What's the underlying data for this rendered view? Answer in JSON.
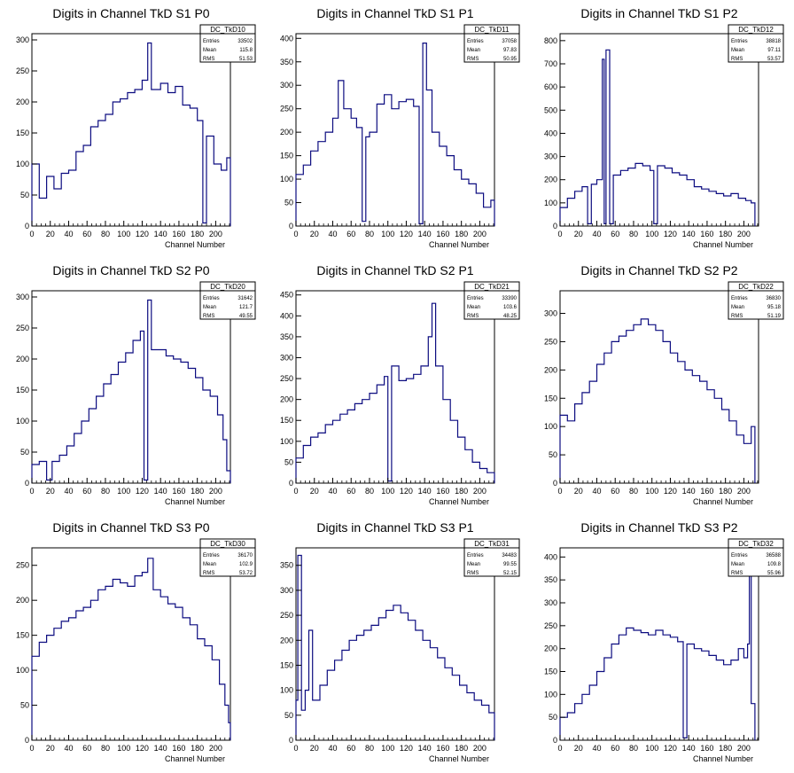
{
  "chart_data": [
    {
      "type": "histogram",
      "title": "Digits in Channel TkD S1 P0",
      "xlabel": "Channel Number",
      "ylabel": "",
      "xlim": [
        0,
        216
      ],
      "ylim": [
        0,
        310
      ],
      "xticks": [
        0,
        20,
        40,
        60,
        80,
        100,
        120,
        140,
        160,
        180,
        200
      ],
      "yticks": [
        0,
        50,
        100,
        150,
        200,
        250,
        300
      ],
      "stats": {
        "name": "DC_TkD10",
        "entries": "33502",
        "mean": "115.8",
        "rms": "51.53"
      },
      "bins": [
        [
          0,
          100
        ],
        [
          8,
          45
        ],
        [
          16,
          80
        ],
        [
          24,
          60
        ],
        [
          32,
          85
        ],
        [
          40,
          90
        ],
        [
          48,
          120
        ],
        [
          56,
          130
        ],
        [
          64,
          160
        ],
        [
          72,
          170
        ],
        [
          80,
          180
        ],
        [
          88,
          200
        ],
        [
          96,
          205
        ],
        [
          104,
          215
        ],
        [
          112,
          220
        ],
        [
          120,
          235
        ],
        [
          126,
          295
        ],
        [
          130,
          220
        ],
        [
          140,
          230
        ],
        [
          148,
          215
        ],
        [
          156,
          225
        ],
        [
          164,
          195
        ],
        [
          172,
          190
        ],
        [
          180,
          170
        ],
        [
          186,
          5
        ],
        [
          190,
          145
        ],
        [
          198,
          100
        ],
        [
          206,
          90
        ],
        [
          212,
          110
        ],
        [
          216,
          0
        ]
      ]
    },
    {
      "type": "histogram",
      "title": "Digits in Channel TkD S1 P1",
      "xlabel": "Channel Number",
      "ylabel": "",
      "xlim": [
        0,
        216
      ],
      "ylim": [
        0,
        410
      ],
      "xticks": [
        0,
        20,
        40,
        60,
        80,
        100,
        120,
        140,
        160,
        180,
        200
      ],
      "yticks": [
        0,
        50,
        100,
        150,
        200,
        250,
        300,
        350,
        400
      ],
      "stats": {
        "name": "DC_TkD11",
        "entries": "37058",
        "mean": "97.83",
        "rms": "50.95"
      },
      "bins": [
        [
          0,
          110
        ],
        [
          8,
          130
        ],
        [
          16,
          160
        ],
        [
          24,
          180
        ],
        [
          32,
          200
        ],
        [
          40,
          230
        ],
        [
          46,
          310
        ],
        [
          52,
          250
        ],
        [
          60,
          230
        ],
        [
          66,
          210
        ],
        [
          72,
          10
        ],
        [
          76,
          190
        ],
        [
          80,
          200
        ],
        [
          88,
          260
        ],
        [
          96,
          280
        ],
        [
          104,
          250
        ],
        [
          112,
          265
        ],
        [
          120,
          270
        ],
        [
          128,
          255
        ],
        [
          134,
          5
        ],
        [
          138,
          390
        ],
        [
          142,
          290
        ],
        [
          148,
          200
        ],
        [
          156,
          170
        ],
        [
          164,
          150
        ],
        [
          172,
          120
        ],
        [
          180,
          100
        ],
        [
          188,
          90
        ],
        [
          196,
          70
        ],
        [
          204,
          40
        ],
        [
          212,
          55
        ],
        [
          216,
          0
        ]
      ]
    },
    {
      "type": "histogram",
      "title": "Digits in Channel TkD S1 P2",
      "xlabel": "Channel Number",
      "ylabel": "",
      "xlim": [
        0,
        216
      ],
      "ylim": [
        0,
        830
      ],
      "xticks": [
        0,
        20,
        40,
        60,
        80,
        100,
        120,
        140,
        160,
        180,
        200
      ],
      "yticks": [
        0,
        100,
        200,
        300,
        400,
        500,
        600,
        700,
        800
      ],
      "stats": {
        "name": "DC_TkD12",
        "entries": "38818",
        "mean": "97.11",
        "rms": "53.57"
      },
      "bins": [
        [
          0,
          80
        ],
        [
          8,
          120
        ],
        [
          16,
          150
        ],
        [
          24,
          170
        ],
        [
          30,
          10
        ],
        [
          34,
          180
        ],
        [
          40,
          200
        ],
        [
          46,
          720
        ],
        [
          48,
          10
        ],
        [
          50,
          760
        ],
        [
          54,
          10
        ],
        [
          58,
          220
        ],
        [
          66,
          240
        ],
        [
          74,
          250
        ],
        [
          82,
          270
        ],
        [
          90,
          260
        ],
        [
          98,
          240
        ],
        [
          102,
          10
        ],
        [
          106,
          260
        ],
        [
          114,
          250
        ],
        [
          122,
          230
        ],
        [
          130,
          220
        ],
        [
          138,
          200
        ],
        [
          146,
          170
        ],
        [
          154,
          160
        ],
        [
          162,
          150
        ],
        [
          170,
          140
        ],
        [
          178,
          130
        ],
        [
          186,
          140
        ],
        [
          194,
          120
        ],
        [
          202,
          110
        ],
        [
          208,
          100
        ],
        [
          212,
          0
        ]
      ]
    },
    {
      "type": "histogram",
      "title": "Digits in Channel TkD S2 P0",
      "xlabel": "Channel Number",
      "ylabel": "",
      "xlim": [
        0,
        216
      ],
      "ylim": [
        0,
        310
      ],
      "xticks": [
        0,
        20,
        40,
        60,
        80,
        100,
        120,
        140,
        160,
        180,
        200
      ],
      "yticks": [
        0,
        50,
        100,
        150,
        200,
        250,
        300
      ],
      "stats": {
        "name": "DC_TkD20",
        "entries": "31642",
        "mean": "121.7",
        "rms": "49.55"
      },
      "bins": [
        [
          0,
          30
        ],
        [
          8,
          35
        ],
        [
          16,
          5
        ],
        [
          22,
          35
        ],
        [
          30,
          45
        ],
        [
          38,
          60
        ],
        [
          46,
          80
        ],
        [
          54,
          100
        ],
        [
          62,
          120
        ],
        [
          70,
          140
        ],
        [
          78,
          160
        ],
        [
          86,
          175
        ],
        [
          94,
          195
        ],
        [
          102,
          210
        ],
        [
          110,
          230
        ],
        [
          118,
          245
        ],
        [
          122,
          5
        ],
        [
          126,
          295
        ],
        [
          130,
          215
        ],
        [
          138,
          215
        ],
        [
          146,
          205
        ],
        [
          154,
          200
        ],
        [
          162,
          195
        ],
        [
          170,
          185
        ],
        [
          178,
          170
        ],
        [
          186,
          150
        ],
        [
          194,
          140
        ],
        [
          202,
          110
        ],
        [
          208,
          70
        ],
        [
          212,
          20
        ],
        [
          216,
          0
        ]
      ]
    },
    {
      "type": "histogram",
      "title": "Digits in Channel TkD S2 P1",
      "xlabel": "Channel Number",
      "ylabel": "",
      "xlim": [
        0,
        216
      ],
      "ylim": [
        0,
        460
      ],
      "xticks": [
        0,
        20,
        40,
        60,
        80,
        100,
        120,
        140,
        160,
        180,
        200
      ],
      "yticks": [
        0,
        50,
        100,
        150,
        200,
        250,
        300,
        350,
        400,
        450
      ],
      "stats": {
        "name": "DC_TkD21",
        "entries": "33390",
        "mean": "103.6",
        "rms": "48.25"
      },
      "bins": [
        [
          0,
          60
        ],
        [
          8,
          90
        ],
        [
          16,
          110
        ],
        [
          24,
          120
        ],
        [
          32,
          140
        ],
        [
          40,
          150
        ],
        [
          48,
          165
        ],
        [
          56,
          175
        ],
        [
          64,
          190
        ],
        [
          72,
          200
        ],
        [
          80,
          215
        ],
        [
          88,
          235
        ],
        [
          96,
          255
        ],
        [
          100,
          5
        ],
        [
          104,
          280
        ],
        [
          112,
          245
        ],
        [
          120,
          250
        ],
        [
          128,
          260
        ],
        [
          136,
          280
        ],
        [
          144,
          350
        ],
        [
          148,
          430
        ],
        [
          152,
          280
        ],
        [
          160,
          200
        ],
        [
          168,
          150
        ],
        [
          176,
          110
        ],
        [
          184,
          80
        ],
        [
          192,
          50
        ],
        [
          200,
          35
        ],
        [
          208,
          25
        ],
        [
          216,
          0
        ]
      ]
    },
    {
      "type": "histogram",
      "title": "Digits in Channel TkD S2 P2",
      "xlabel": "Channel Number",
      "ylabel": "",
      "xlim": [
        0,
        216
      ],
      "ylim": [
        0,
        340
      ],
      "xticks": [
        0,
        20,
        40,
        60,
        80,
        100,
        120,
        140,
        160,
        180,
        200
      ],
      "yticks": [
        0,
        50,
        100,
        150,
        200,
        250,
        300
      ],
      "stats": {
        "name": "DC_TkD22",
        "entries": "36830",
        "mean": "95.18",
        "rms": "51.19"
      },
      "bins": [
        [
          0,
          120
        ],
        [
          8,
          110
        ],
        [
          16,
          140
        ],
        [
          24,
          160
        ],
        [
          32,
          180
        ],
        [
          40,
          210
        ],
        [
          48,
          230
        ],
        [
          56,
          250
        ],
        [
          64,
          260
        ],
        [
          72,
          270
        ],
        [
          80,
          280
        ],
        [
          88,
          290
        ],
        [
          96,
          280
        ],
        [
          104,
          270
        ],
        [
          112,
          250
        ],
        [
          120,
          230
        ],
        [
          128,
          215
        ],
        [
          136,
          200
        ],
        [
          144,
          190
        ],
        [
          152,
          180
        ],
        [
          160,
          165
        ],
        [
          168,
          150
        ],
        [
          176,
          130
        ],
        [
          184,
          110
        ],
        [
          192,
          85
        ],
        [
          200,
          70
        ],
        [
          208,
          100
        ],
        [
          212,
          0
        ]
      ]
    },
    {
      "type": "histogram",
      "title": "Digits in Channel TkD S3 P0",
      "xlabel": "Channel Number",
      "ylabel": "",
      "xlim": [
        0,
        216
      ],
      "ylim": [
        0,
        275
      ],
      "xticks": [
        0,
        20,
        40,
        60,
        80,
        100,
        120,
        140,
        160,
        180,
        200
      ],
      "yticks": [
        0,
        50,
        100,
        150,
        200,
        250
      ],
      "stats": {
        "name": "DC_TkD30",
        "entries": "36170",
        "mean": "102.9",
        "rms": "53.72"
      },
      "bins": [
        [
          0,
          120
        ],
        [
          8,
          140
        ],
        [
          16,
          150
        ],
        [
          24,
          160
        ],
        [
          32,
          170
        ],
        [
          40,
          175
        ],
        [
          48,
          185
        ],
        [
          56,
          190
        ],
        [
          64,
          200
        ],
        [
          72,
          215
        ],
        [
          80,
          220
        ],
        [
          88,
          230
        ],
        [
          96,
          225
        ],
        [
          104,
          220
        ],
        [
          112,
          235
        ],
        [
          120,
          240
        ],
        [
          126,
          260
        ],
        [
          132,
          215
        ],
        [
          140,
          205
        ],
        [
          148,
          195
        ],
        [
          156,
          190
        ],
        [
          164,
          175
        ],
        [
          172,
          165
        ],
        [
          180,
          145
        ],
        [
          188,
          135
        ],
        [
          196,
          115
        ],
        [
          204,
          80
        ],
        [
          210,
          50
        ],
        [
          214,
          25
        ],
        [
          216,
          0
        ]
      ]
    },
    {
      "type": "histogram",
      "title": "Digits in Channel TkD S3 P1",
      "xlabel": "Channel Number",
      "ylabel": "",
      "xlim": [
        0,
        216
      ],
      "ylim": [
        0,
        385
      ],
      "xticks": [
        0,
        20,
        40,
        60,
        80,
        100,
        120,
        140,
        160,
        180,
        200
      ],
      "yticks": [
        0,
        50,
        100,
        150,
        200,
        250,
        300,
        350
      ],
      "stats": {
        "name": "DC_TkD31",
        "entries": "34483",
        "mean": "99.55",
        "rms": "52.15"
      },
      "bins": [
        [
          0,
          80
        ],
        [
          2,
          370
        ],
        [
          6,
          60
        ],
        [
          10,
          100
        ],
        [
          14,
          220
        ],
        [
          18,
          80
        ],
        [
          26,
          110
        ],
        [
          34,
          140
        ],
        [
          42,
          160
        ],
        [
          50,
          180
        ],
        [
          58,
          200
        ],
        [
          66,
          210
        ],
        [
          74,
          220
        ],
        [
          82,
          230
        ],
        [
          90,
          245
        ],
        [
          98,
          260
        ],
        [
          106,
          270
        ],
        [
          114,
          255
        ],
        [
          122,
          240
        ],
        [
          130,
          220
        ],
        [
          138,
          200
        ],
        [
          146,
          185
        ],
        [
          154,
          165
        ],
        [
          162,
          145
        ],
        [
          170,
          130
        ],
        [
          178,
          110
        ],
        [
          186,
          95
        ],
        [
          194,
          80
        ],
        [
          202,
          70
        ],
        [
          210,
          55
        ],
        [
          216,
          0
        ]
      ]
    },
    {
      "type": "histogram",
      "title": "Digits in Channel TkD S3 P2",
      "xlabel": "Channel Number",
      "ylabel": "",
      "xlim": [
        0,
        216
      ],
      "ylim": [
        0,
        420
      ],
      "xticks": [
        0,
        20,
        40,
        60,
        80,
        100,
        120,
        140,
        160,
        180,
        200
      ],
      "yticks": [
        0,
        50,
        100,
        150,
        200,
        250,
        300,
        350,
        400
      ],
      "stats": {
        "name": "DC_TkD32",
        "entries": "36588",
        "mean": "109.8",
        "rms": "55.96"
      },
      "bins": [
        [
          0,
          50
        ],
        [
          8,
          60
        ],
        [
          16,
          80
        ],
        [
          24,
          100
        ],
        [
          32,
          120
        ],
        [
          40,
          150
        ],
        [
          48,
          180
        ],
        [
          56,
          210
        ],
        [
          64,
          230
        ],
        [
          72,
          245
        ],
        [
          80,
          240
        ],
        [
          88,
          235
        ],
        [
          96,
          230
        ],
        [
          104,
          240
        ],
        [
          112,
          230
        ],
        [
          120,
          225
        ],
        [
          128,
          215
        ],
        [
          134,
          5
        ],
        [
          138,
          210
        ],
        [
          146,
          200
        ],
        [
          154,
          195
        ],
        [
          162,
          185
        ],
        [
          170,
          175
        ],
        [
          178,
          165
        ],
        [
          186,
          175
        ],
        [
          194,
          200
        ],
        [
          200,
          180
        ],
        [
          204,
          210
        ],
        [
          206,
          400
        ],
        [
          208,
          80
        ],
        [
          212,
          0
        ]
      ]
    }
  ]
}
